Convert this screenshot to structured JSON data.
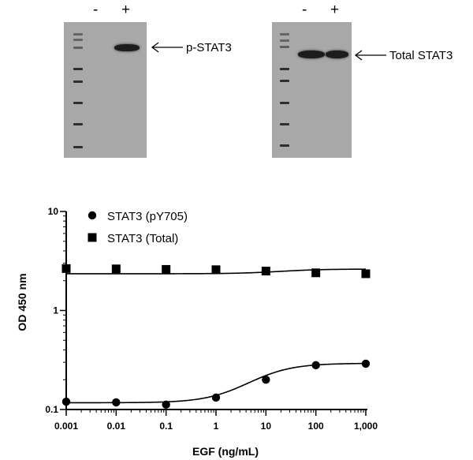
{
  "blots": {
    "left": {
      "lanes": [
        "-",
        "+"
      ],
      "label": "p-STAT3"
    },
    "right": {
      "lanes": [
        "-",
        "+"
      ],
      "label": "Total STAT3"
    }
  },
  "chart_data": {
    "type": "scatter",
    "xlabel": "EGF (ng/mL)",
    "ylabel": "OD 450 nm",
    "xscale": "log",
    "yscale": "log",
    "xlim": [
      0.001,
      1000
    ],
    "ylim": [
      0.1,
      10
    ],
    "x_ticks": [
      0.001,
      0.01,
      0.1,
      1,
      10,
      100,
      1000
    ],
    "x_tick_labels": [
      "0.001",
      "0.01",
      "0.1",
      "1",
      "10",
      "100",
      "1,000"
    ],
    "y_ticks": [
      0.1,
      1,
      10
    ],
    "y_tick_labels": [
      "0.1",
      "1",
      "10"
    ],
    "legend_position": "top-left",
    "series": [
      {
        "name": "STAT3 (pY705)",
        "marker": "circle",
        "x": [
          0.001,
          0.01,
          0.1,
          1,
          10,
          100,
          1000
        ],
        "y": [
          0.12,
          0.118,
          0.112,
          0.132,
          0.2,
          0.28,
          0.29
        ],
        "fit": {
          "bottom": 0.117,
          "top": 0.293,
          "ec50": 7,
          "hill": 1
        }
      },
      {
        "name": "STAT3 (Total)",
        "marker": "square",
        "x": [
          0.001,
          0.01,
          0.1,
          1,
          10,
          100,
          1000
        ],
        "y": [
          2.65,
          2.63,
          2.6,
          2.58,
          2.5,
          2.4,
          2.35
        ],
        "fit": {
          "bottom": 2.35,
          "top": 2.62,
          "ec50": 20,
          "hill": 1
        }
      }
    ]
  }
}
